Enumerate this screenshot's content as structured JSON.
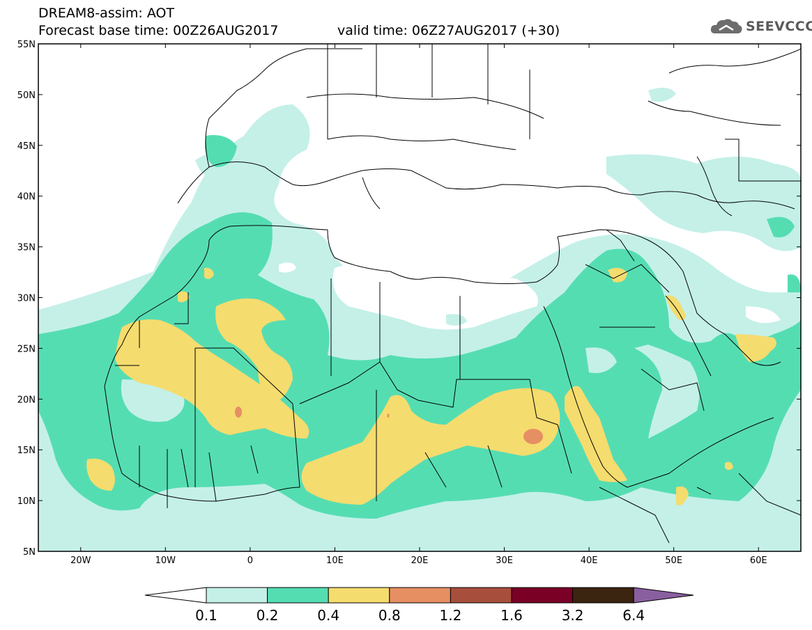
{
  "header": {
    "title": "DREAM8-assim: AOT",
    "base_time": "Forecast base time: 00Z26AUG2017",
    "valid_time": "valid time: 06Z27AUG2017 (+30)"
  },
  "logo": {
    "text": "SEEVCCC",
    "icon": "cloud-icon"
  },
  "map": {
    "lon_range": [
      -25,
      65
    ],
    "lat_range": [
      5,
      55
    ],
    "lat_ticks": [
      "5N",
      "10N",
      "15N",
      "20N",
      "25N",
      "30N",
      "35N",
      "40N",
      "45N",
      "50N",
      "55N"
    ],
    "lon_ticks": [
      "20W",
      "10W",
      "0",
      "10E",
      "20E",
      "30E",
      "40E",
      "50E",
      "60E"
    ]
  },
  "colorbar": {
    "labels": [
      "0.1",
      "0.2",
      "0.4",
      "0.8",
      "1.2",
      "1.6",
      "3.2",
      "6.4"
    ],
    "colors": [
      "#ffffff",
      "#c4f0e8",
      "#55ddb2",
      "#f5dc6e",
      "#e68f63",
      "#a84e3c",
      "#7a0026",
      "#3b2410",
      "#8a5fa0"
    ]
  }
}
